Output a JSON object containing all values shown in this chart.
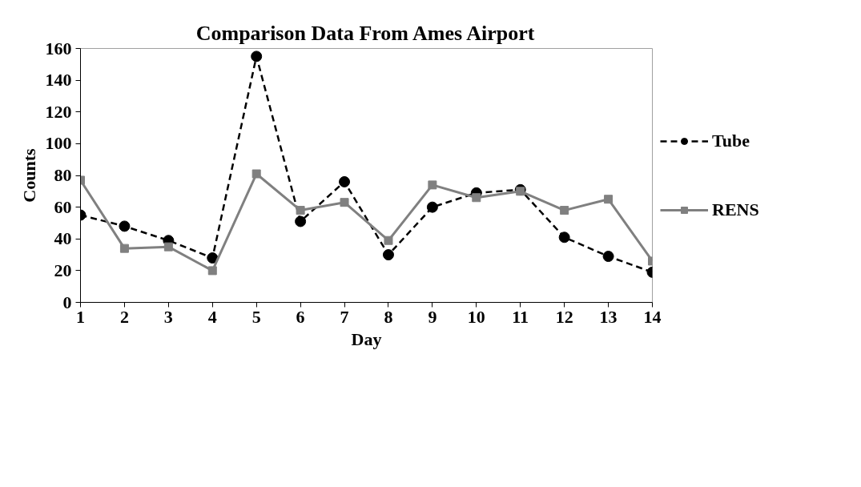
{
  "chart_data": {
    "type": "line",
    "title": "Comparison Data From Ames Airport",
    "xlabel": "Day",
    "ylabel": "Counts",
    "x": [
      1,
      2,
      3,
      4,
      5,
      6,
      7,
      8,
      9,
      10,
      11,
      12,
      13,
      14
    ],
    "series": [
      {
        "name": "Tube",
        "color": "#000000",
        "marker": "circle",
        "line_style": "dashed",
        "values": [
          55,
          48,
          39,
          28,
          155,
          51,
          76,
          30,
          60,
          69,
          71,
          41,
          29,
          19
        ]
      },
      {
        "name": "RENS",
        "color": "#808080",
        "marker": "square",
        "line_style": "solid",
        "values": [
          77,
          34,
          35,
          20,
          81,
          58,
          63,
          39,
          74,
          66,
          70,
          58,
          65,
          26
        ]
      }
    ],
    "xlim": [
      1,
      14
    ],
    "xticks": [
      1,
      2,
      3,
      4,
      5,
      6,
      7,
      8,
      9,
      10,
      11,
      12,
      13,
      14
    ],
    "ylim": [
      0,
      160
    ],
    "yticks": [
      0,
      20,
      40,
      60,
      80,
      100,
      120,
      140,
      160
    ],
    "grid": false,
    "legend": "right"
  }
}
